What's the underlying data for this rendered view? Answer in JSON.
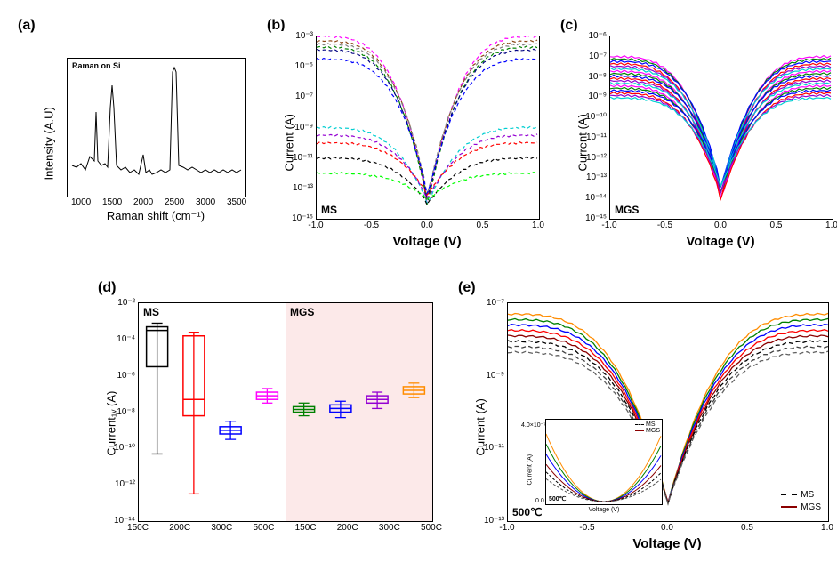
{
  "labels": {
    "a": "(a)",
    "b": "(b)",
    "c": "(c)",
    "d": "(d)",
    "e": "(e)"
  },
  "panel_a": {
    "type": "line",
    "title": "Raman on Si",
    "xlabel": "Raman shift (cm⁻¹)",
    "ylabel": "Intensity (A.U)",
    "xlim": [
      800,
      3500
    ],
    "xticks": [
      1000,
      1500,
      2000,
      2500,
      3000,
      3500
    ],
    "line_color": "#000000",
    "peaks_x": [
      1350,
      1580,
      2700
    ],
    "background_color": "#ffffff",
    "border_color": "#000000"
  },
  "panel_b": {
    "type": "line",
    "annotation": "MS",
    "xlabel": "Voltage (V)",
    "ylabel": "Current (A)",
    "xlim": [
      -1.0,
      1.0
    ],
    "ylim_exp": [
      -15,
      -3
    ],
    "xticks": [
      -1.0,
      -0.5,
      0.0,
      0.5,
      1.0
    ],
    "ytick_exps": [
      -15,
      -13,
      -11,
      -9,
      -7,
      -5,
      -3
    ],
    "yscale": "log",
    "series_colors": [
      "#ff00ff",
      "#8b4513",
      "#808080",
      "#008000",
      "#000080",
      "#0000ff",
      "#00ced1",
      "#9400d3",
      "#ff0000",
      "#000000",
      "#00ff00"
    ],
    "line_style": "dashed",
    "background_color": "#ffffff"
  },
  "panel_c": {
    "type": "line",
    "annotation": "MGS",
    "xlabel": "Voltage (V)",
    "ylabel": "Current (A)",
    "xlim": [
      -1.0,
      1.0
    ],
    "ylim_exp": [
      -15,
      -6
    ],
    "xticks": [
      -1.0,
      -0.5,
      0.0,
      0.5,
      1.0
    ],
    "ytick_exps": [
      -15,
      -14,
      -13,
      -12,
      -11,
      -10,
      -9,
      -8,
      -7,
      -6
    ],
    "yscale": "log",
    "series_colors": [
      "#ff00ff",
      "#008000",
      "#0000ff",
      "#ff0000",
      "#9400d3",
      "#00ced1"
    ],
    "line_style": "solid",
    "background_color": "#ffffff"
  },
  "panel_d": {
    "type": "boxplot",
    "left_label": "MS",
    "right_label": "MGS",
    "right_bg": "#fce9e9",
    "xlabel": "",
    "ylabel": "Current₁ᵥ (A)",
    "ylim_exp": [
      -14,
      -2
    ],
    "ytick_exps": [
      -14,
      -12,
      -10,
      -8,
      -6,
      -4,
      -2
    ],
    "categories": [
      "150C",
      "200C",
      "300C",
      "500C",
      "150C",
      "200C",
      "300C",
      "500C"
    ],
    "box_colors": [
      "#000000",
      "#ff0000",
      "#0000ff",
      "#ff00ff",
      "#008000",
      "#0000ff",
      "#9400d3",
      "#ff8c00"
    ],
    "ms_boxes": [
      {
        "q1_exp": -5.5,
        "q3_exp": -3.3,
        "median_exp": -3.5,
        "wlo_exp": -10.3,
        "whi_exp": -3.1
      },
      {
        "q1_exp": -8.2,
        "q3_exp": -3.8,
        "median_exp": -7.3,
        "wlo_exp": -12.5,
        "whi_exp": -3.6
      },
      {
        "q1_exp": -9.2,
        "q3_exp": -8.8,
        "median_exp": -9.0,
        "wlo_exp": -9.5,
        "whi_exp": -8.5
      },
      {
        "q1_exp": -7.3,
        "q3_exp": -6.9,
        "median_exp": -7.1,
        "wlo_exp": -7.5,
        "whi_exp": -6.7
      }
    ],
    "mgs_boxes": [
      {
        "q1_exp": -8.0,
        "q3_exp": -7.7,
        "median_exp": -7.85,
        "wlo_exp": -8.2,
        "whi_exp": -7.5
      },
      {
        "q1_exp": -8.0,
        "q3_exp": -7.6,
        "median_exp": -7.8,
        "wlo_exp": -8.3,
        "whi_exp": -7.4
      },
      {
        "q1_exp": -7.5,
        "q3_exp": -7.1,
        "median_exp": -7.3,
        "wlo_exp": -7.8,
        "whi_exp": -6.9
      },
      {
        "q1_exp": -7.0,
        "q3_exp": -6.6,
        "median_exp": -6.8,
        "wlo_exp": -7.2,
        "whi_exp": -6.4
      }
    ]
  },
  "panel_e": {
    "type": "line",
    "annotation": "500℃",
    "xlabel": "Voltage (V)",
    "ylabel": "Current (A)",
    "xlim": [
      -1.0,
      1.0
    ],
    "ylim_exp": [
      -13,
      -7
    ],
    "xticks": [
      -1.0,
      -0.5,
      0.0,
      0.5,
      1.0
    ],
    "ytick_exps": [
      -13,
      -11,
      -9,
      -7
    ],
    "yscale": "log",
    "legend": [
      {
        "label": "MS",
        "color": "#000000",
        "style": "dashed"
      },
      {
        "label": "MGS",
        "color": "#8b0000",
        "style": "solid"
      }
    ],
    "series_colors_ms": [
      "#000000",
      "#404040",
      "#606060"
    ],
    "series_colors_mgs": [
      "#ff8c00",
      "#008000",
      "#0000ff",
      "#ff0000",
      "#8b0000"
    ],
    "inset": {
      "annotation": "500℃",
      "xlabel": "Voltage (V)",
      "ylabel": "Current (A)",
      "xlim": [
        -1.0,
        1.0
      ],
      "xticks": [
        -1.0,
        -0.5,
        0.0,
        0.5,
        1.0
      ],
      "ylim": [
        0.0,
        4e-07
      ],
      "ylabel_top": "4.0×10⁻⁷",
      "ylabel_bot": "0.0",
      "legend": [
        {
          "label": "MS",
          "style": "dashed"
        },
        {
          "label": "MGS",
          "style": "solid"
        }
      ]
    }
  }
}
